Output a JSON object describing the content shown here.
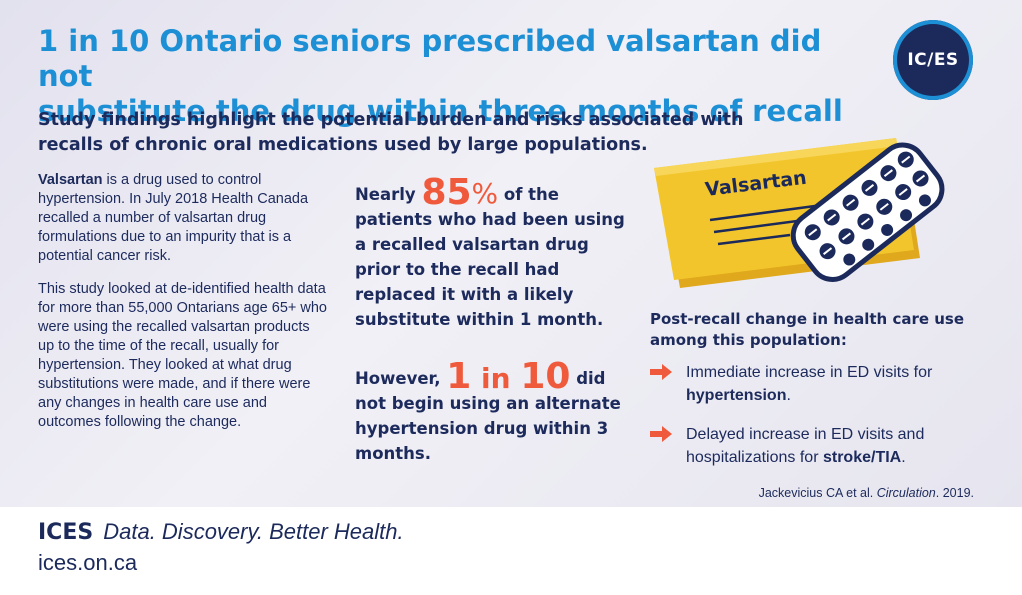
{
  "header": {
    "title_line1": "1 in 10 Ontario seniors prescribed valsartan did not",
    "title_line2": "substitute the drug within three months of recall",
    "subtitle_line1": "Study findings highlight the potential burden and risks associated with",
    "subtitle_line2": "recalls of chronic oral medications used by large populations.",
    "logo_text": "IC/ES"
  },
  "left": {
    "p1_bold": "Valsartan",
    "p1_rest": " is a drug used to control hypertension. In July 2018 Health Canada recalled a number of valsartan drug formulations due to an impurity that is a potential cancer risk.",
    "p2": "This study looked at de-identified health data for more than 55,000 Ontarians age 65+  who were using the recalled valsartan products  up to the time of the recall, usually for hypertension.  They looked at what drug substitutions were made, and if there were any changes in health care use and outcomes following the change."
  },
  "middle": {
    "stat1_pre": "Nearly ",
    "stat1_num": "85",
    "stat1_pct": "%",
    "stat1_post": " of the patients who had been using a recalled valsartan drug prior to the recall had replaced it with a likely substitute within 1 month.",
    "stat2_pre": "However, ",
    "stat2_n1": "1",
    "stat2_in": " in ",
    "stat2_n2": "10",
    "stat2_post": " did not begin using an alternate hypertension drug within 3 months."
  },
  "illustration": {
    "box_label": "Valsartan",
    "colors": {
      "box": "#f3c52c",
      "box_edge": "#e0a81c",
      "pill": "#1b2a5b",
      "blister": "#ffffff"
    }
  },
  "right": {
    "heading": "Post-recall change in health care use among this population:",
    "bullets": [
      {
        "text": "Immediate increase in ED visits for ",
        "bold": "hypertension",
        "tail": "."
      },
      {
        "text": "Delayed increase in ED visits and hospitalizations for ",
        "bold": "stroke/TIA",
        "tail": "."
      }
    ]
  },
  "citation": {
    "authors": "Jackevicius CA et al. ",
    "journal": "Circulation",
    "year": ". 2019."
  },
  "footer": {
    "brand": "ICES",
    "tagline": "Data. Discovery. Better Health.",
    "url": "ices.on.ca"
  },
  "colors": {
    "title": "#1d8fd5",
    "navy": "#1c2a5c",
    "accent": "#f05a3c"
  }
}
